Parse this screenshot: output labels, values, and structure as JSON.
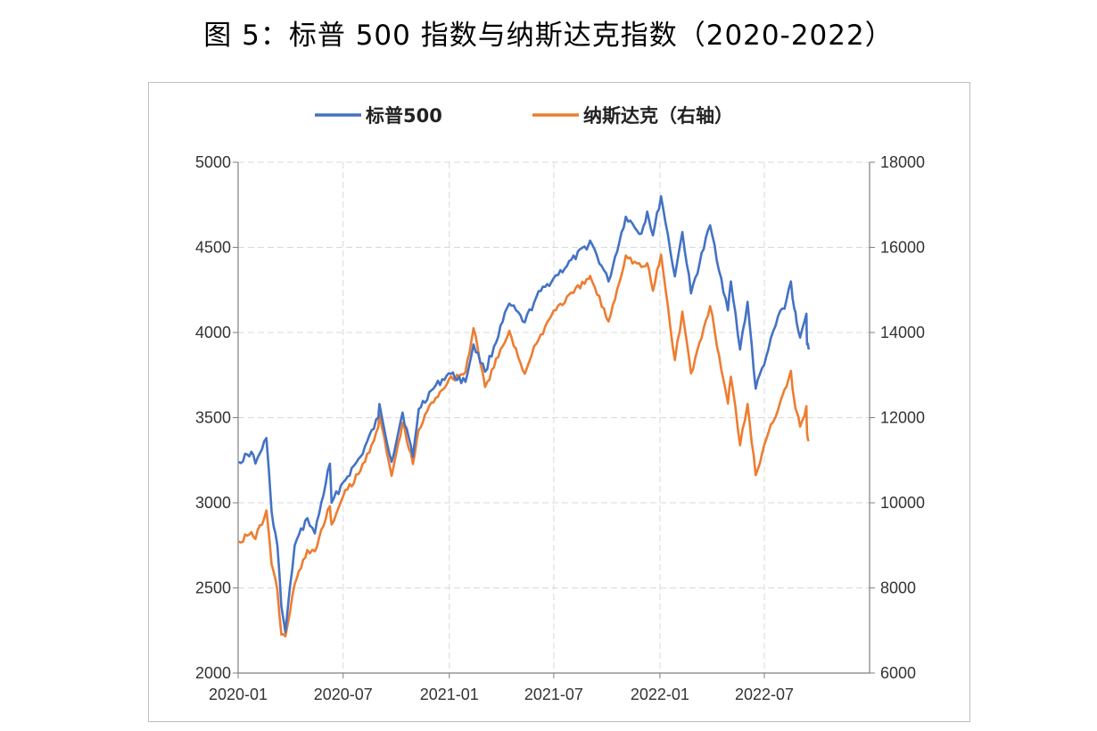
{
  "title": "图 5：标普 500 指数与纳斯达克指数（2020-2022）",
  "colors": {
    "sp500": "#4472c4",
    "nasdaq": "#ed7d31",
    "grid": "#d9d9d9",
    "axis": "#7f7f7f"
  },
  "chart_data": {
    "type": "line",
    "title": "图 5：标普 500 指数与纳斯达克指数（2020-2022）",
    "legend_position": "top-center",
    "grid": true,
    "x_ticks": [
      "2020-01",
      "2020-07",
      "2021-01",
      "2021-07",
      "2022-01",
      "2022-07"
    ],
    "y_left": {
      "ticks": [
        "5000",
        "4500",
        "4000",
        "3500",
        "3000",
        "2500",
        "2000"
      ],
      "range": [
        2000,
        5000
      ]
    },
    "y_right": {
      "ticks": [
        "18000",
        "16000",
        "14000",
        "12000",
        "10000",
        "8000",
        "6000"
      ],
      "range": [
        6000,
        18000
      ]
    },
    "series": [
      {
        "name": "标普500",
        "axis": "left",
        "color": "#4472c4",
        "points": [
          [
            "2020-01-02",
            3240
          ],
          [
            "2020-01-24",
            3300
          ],
          [
            "2020-01-31",
            3230
          ],
          [
            "2020-02-19",
            3380
          ],
          [
            "2020-02-28",
            2950
          ],
          [
            "2020-03-09",
            2750
          ],
          [
            "2020-03-16",
            2390
          ],
          [
            "2020-03-23",
            2240
          ],
          [
            "2020-04-08",
            2750
          ],
          [
            "2020-04-30",
            2910
          ],
          [
            "2020-05-13",
            2820
          ],
          [
            "2020-06-08",
            3230
          ],
          [
            "2020-06-11",
            3000
          ],
          [
            "2020-07-01",
            3120
          ],
          [
            "2020-07-31",
            3270
          ],
          [
            "2020-08-31",
            3500
          ],
          [
            "2020-09-02",
            3580
          ],
          [
            "2020-09-23",
            3240
          ],
          [
            "2020-10-12",
            3530
          ],
          [
            "2020-10-30",
            3270
          ],
          [
            "2020-11-09",
            3550
          ],
          [
            "2020-12-01",
            3660
          ],
          [
            "2020-12-31",
            3760
          ],
          [
            "2021-01-29",
            3710
          ],
          [
            "2021-02-12",
            3930
          ],
          [
            "2021-03-04",
            3770
          ],
          [
            "2021-04-15",
            4170
          ],
          [
            "2021-05-12",
            4060
          ],
          [
            "2021-06-01",
            4210
          ],
          [
            "2021-07-01",
            4320
          ],
          [
            "2021-08-31",
            4520
          ],
          [
            "2021-09-02",
            4540
          ],
          [
            "2021-10-04",
            4300
          ],
          [
            "2021-11-03",
            4680
          ],
          [
            "2021-11-30",
            4580
          ],
          [
            "2021-12-10",
            4710
          ],
          [
            "2021-12-20",
            4570
          ],
          [
            "2022-01-03",
            4800
          ],
          [
            "2022-01-27",
            4330
          ],
          [
            "2022-02-09",
            4590
          ],
          [
            "2022-02-24",
            4230
          ],
          [
            "2022-03-29",
            4630
          ],
          [
            "2022-04-29",
            4130
          ],
          [
            "2022-05-04",
            4300
          ],
          [
            "2022-05-20",
            3900
          ],
          [
            "2022-06-02",
            4180
          ],
          [
            "2022-06-16",
            3670
          ],
          [
            "2022-07-08",
            3900
          ],
          [
            "2022-07-29",
            4130
          ],
          [
            "2022-08-05",
            4140
          ],
          [
            "2022-08-16",
            4300
          ],
          [
            "2022-08-22",
            4140
          ],
          [
            "2022-08-26",
            4060
          ],
          [
            "2022-09-01",
            3970
          ],
          [
            "2022-09-12",
            4110
          ],
          [
            "2022-09-13",
            3930
          ],
          [
            "2022-09-16",
            3900
          ]
        ]
      },
      {
        "name": "纳斯达克（右轴）",
        "axis": "right",
        "color": "#ed7d31",
        "points": [
          [
            "2020-01-02",
            9090
          ],
          [
            "2020-01-24",
            9310
          ],
          [
            "2020-01-31",
            9150
          ],
          [
            "2020-02-19",
            9820
          ],
          [
            "2020-02-28",
            8560
          ],
          [
            "2020-03-09",
            7950
          ],
          [
            "2020-03-16",
            6900
          ],
          [
            "2020-03-23",
            6860
          ],
          [
            "2020-04-08",
            8090
          ],
          [
            "2020-04-30",
            8890
          ],
          [
            "2020-05-13",
            8860
          ],
          [
            "2020-06-08",
            9920
          ],
          [
            "2020-06-11",
            9490
          ],
          [
            "2020-07-01",
            10150
          ],
          [
            "2020-07-31",
            10750
          ],
          [
            "2020-08-31",
            11780
          ],
          [
            "2020-09-02",
            12060
          ],
          [
            "2020-09-23",
            10630
          ],
          [
            "2020-10-12",
            11880
          ],
          [
            "2020-10-30",
            10910
          ],
          [
            "2020-11-09",
            11710
          ],
          [
            "2020-12-01",
            12350
          ],
          [
            "2020-12-31",
            12890
          ],
          [
            "2021-01-29",
            13070
          ],
          [
            "2021-02-12",
            14100
          ],
          [
            "2021-03-04",
            12720
          ],
          [
            "2021-04-15",
            14040
          ],
          [
            "2021-05-12",
            13030
          ],
          [
            "2021-06-01",
            13740
          ],
          [
            "2021-07-01",
            14520
          ],
          [
            "2021-08-31",
            15260
          ],
          [
            "2021-09-02",
            15330
          ],
          [
            "2021-10-04",
            14260
          ],
          [
            "2021-11-03",
            15810
          ],
          [
            "2021-11-30",
            15540
          ],
          [
            "2021-12-10",
            15630
          ],
          [
            "2021-12-20",
            14980
          ],
          [
            "2022-01-03",
            15830
          ],
          [
            "2022-01-27",
            13350
          ],
          [
            "2022-02-09",
            14490
          ],
          [
            "2022-02-24",
            13040
          ],
          [
            "2022-03-29",
            14620
          ],
          [
            "2022-04-29",
            12330
          ],
          [
            "2022-05-04",
            12960
          ],
          [
            "2022-05-20",
            11350
          ],
          [
            "2022-06-02",
            12320
          ],
          [
            "2022-06-16",
            10650
          ],
          [
            "2022-07-08",
            11640
          ],
          [
            "2022-07-29",
            12390
          ],
          [
            "2022-08-05",
            12660
          ],
          [
            "2022-08-16",
            13100
          ],
          [
            "2022-08-22",
            12400
          ],
          [
            "2022-08-26",
            12140
          ],
          [
            "2022-09-01",
            11790
          ],
          [
            "2022-09-12",
            12270
          ],
          [
            "2022-09-13",
            11640
          ],
          [
            "2022-09-16",
            11450
          ]
        ]
      }
    ]
  }
}
